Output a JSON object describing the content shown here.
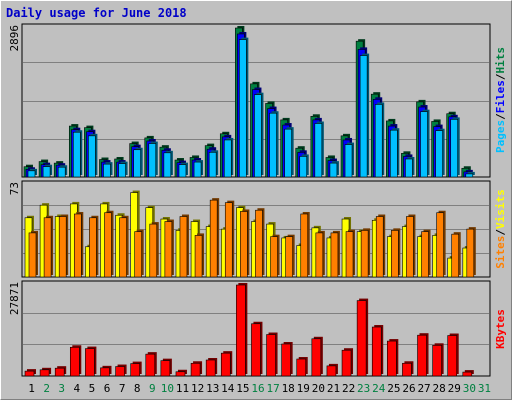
{
  "title": "Daily usage for June 2018",
  "colors": {
    "background": "#c0c0c0",
    "hits": "#008040",
    "files": "#0000ff",
    "pages": "#00c0ff",
    "visits": "#ffff00",
    "sites": "#ff8000",
    "kbytes": "#ff0000",
    "weekend_label": "#008040",
    "title": "#0000c8"
  },
  "chart_data": [
    {
      "type": "bar",
      "panel": "requests",
      "x": [
        1,
        2,
        3,
        4,
        5,
        6,
        7,
        8,
        9,
        10,
        11,
        12,
        13,
        14,
        15,
        16,
        17,
        18,
        19,
        20,
        21,
        22,
        23,
        24,
        25,
        26,
        27,
        28,
        29,
        30,
        31
      ],
      "ymax_label": "2896",
      "ylim": [
        0,
        2896
      ],
      "series": [
        {
          "name": "Hits",
          "values": [
            200,
            300,
            270,
            990,
            960,
            340,
            350,
            650,
            760,
            580,
            330,
            380,
            610,
            840,
            2896,
            1810,
            1430,
            1110,
            560,
            1180,
            380,
            800,
            2640,
            1610,
            1090,
            460,
            1460,
            1080,
            1230,
            170,
            0
          ]
        },
        {
          "name": "Files",
          "values": [
            150,
            240,
            230,
            920,
            880,
            290,
            290,
            590,
            700,
            520,
            280,
            330,
            540,
            780,
            2780,
            1700,
            1330,
            1010,
            480,
            1110,
            320,
            720,
            2480,
            1510,
            990,
            400,
            1360,
            980,
            1170,
            100,
            0
          ]
        },
        {
          "name": "Pages",
          "values": [
            120,
            200,
            190,
            870,
            800,
            250,
            260,
            530,
            650,
            470,
            240,
            290,
            480,
            720,
            2670,
            1600,
            1240,
            930,
            400,
            1040,
            270,
            630,
            2360,
            1410,
            910,
            350,
            1270,
            900,
            1120,
            60,
            0
          ]
        }
      ]
    },
    {
      "type": "bar",
      "panel": "visitors",
      "x": [
        1,
        2,
        3,
        4,
        5,
        6,
        7,
        8,
        9,
        10,
        11,
        12,
        13,
        14,
        15,
        16,
        17,
        18,
        19,
        20,
        21,
        22,
        23,
        24,
        25,
        26,
        27,
        28,
        29,
        30,
        31
      ],
      "ymax_label": "73",
      "ylim": [
        0,
        73
      ],
      "series": [
        {
          "name": "Visits",
          "values": [
            47,
            57,
            48,
            58,
            24,
            58,
            49,
            67,
            55,
            46,
            37,
            44,
            40,
            38,
            55,
            44,
            42,
            31,
            25,
            39,
            31,
            46,
            36,
            45,
            32,
            40,
            32,
            33,
            15,
            23,
            0
          ]
        },
        {
          "name": "Sites",
          "values": [
            35,
            47,
            48,
            50,
            47,
            51,
            47,
            36,
            42,
            44,
            48,
            33,
            61,
            59,
            52,
            53,
            32,
            32,
            50,
            35,
            35,
            36,
            37,
            48,
            37,
            48,
            36,
            51,
            34,
            38,
            0
          ]
        }
      ]
    },
    {
      "type": "bar",
      "panel": "kbytes",
      "x": [
        1,
        2,
        3,
        4,
        5,
        6,
        7,
        8,
        9,
        10,
        11,
        12,
        13,
        14,
        15,
        16,
        17,
        18,
        19,
        20,
        21,
        22,
        23,
        24,
        25,
        26,
        27,
        28,
        29,
        30,
        31
      ],
      "ymax_label": "27871",
      "ylim": [
        0,
        27871
      ],
      "series": [
        {
          "name": "KBytes",
          "values": [
            1500,
            1900,
            2400,
            8800,
            8400,
            2500,
            2900,
            3800,
            6700,
            4700,
            1300,
            3900,
            4900,
            7000,
            27871,
            16000,
            12700,
            9800,
            5200,
            11400,
            3100,
            7900,
            23100,
            15000,
            10700,
            3900,
            12500,
            9400,
            12400,
            1200,
            0
          ]
        }
      ]
    }
  ],
  "legend": {
    "panel1": [
      "Pages",
      "/",
      "Files",
      "/",
      "Hits"
    ],
    "panel2": [
      "Sites",
      "/",
      "Visits"
    ],
    "panel3": [
      "KBytes"
    ]
  },
  "x_labels": [
    "1",
    "2",
    "3",
    "4",
    "5",
    "6",
    "7",
    "8",
    "9",
    "10",
    "11",
    "12",
    "13",
    "14",
    "15",
    "16",
    "17",
    "18",
    "19",
    "20",
    "21",
    "22",
    "23",
    "24",
    "25",
    "26",
    "27",
    "28",
    "29",
    "30",
    "31"
  ],
  "weekend_days": [
    2,
    3,
    9,
    10,
    16,
    17,
    23,
    24,
    30,
    31
  ]
}
